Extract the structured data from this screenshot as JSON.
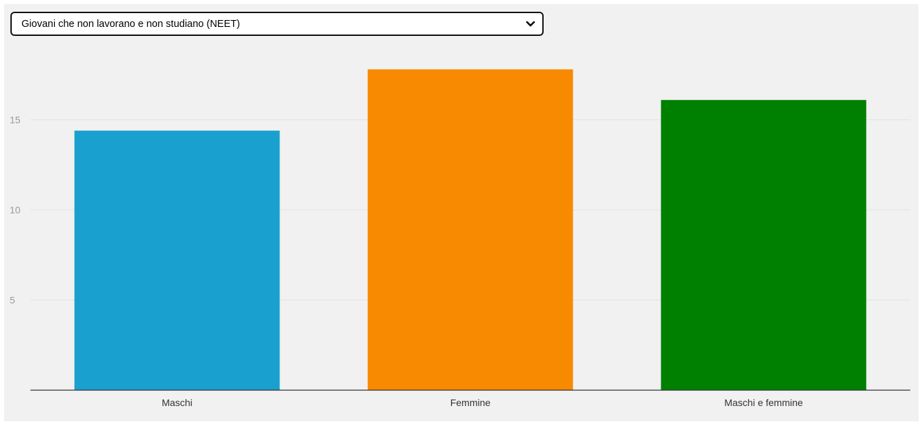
{
  "selector": {
    "selected_label": "Giovani che non lavorano e non studiano (NEET)",
    "icon": "chevron-down-icon"
  },
  "chart_data": {
    "type": "bar",
    "categories": [
      "Maschi",
      "Femmine",
      "Maschi e femmine"
    ],
    "values": [
      14.4,
      17.8,
      16.1
    ],
    "colors": [
      "#1aa0cf",
      "#f78a00",
      "#008000"
    ],
    "yticks": [
      5,
      10,
      15
    ],
    "ylim": [
      0,
      18
    ],
    "grid": true,
    "background": "#f1f1f1",
    "legend": "none"
  }
}
